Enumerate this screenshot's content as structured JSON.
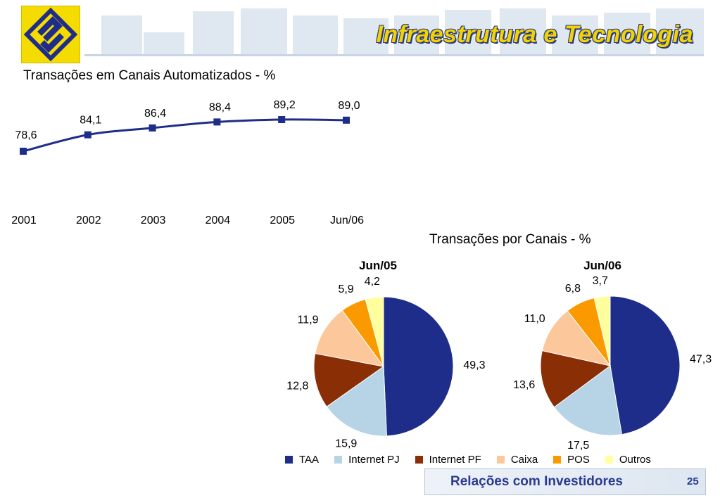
{
  "header": {
    "title": "Infraestrutura e Tecnologia"
  },
  "colors": {
    "brand_yellow": "#f5dc00",
    "brand_blue": "#2b3990",
    "line_series": "#1f2d8a",
    "header_bars": "#dfe7f1"
  },
  "footer": {
    "label": "Relações com Investidores",
    "page_number": "25"
  },
  "chart_data": [
    {
      "type": "line",
      "title": "Transações em Canais Automatizados - %",
      "categories": [
        "2001",
        "2002",
        "2003",
        "2004",
        "2005",
        "Jun/06"
      ],
      "values": [
        78.6,
        84.1,
        86.4,
        88.4,
        89.2,
        89.0
      ],
      "value_labels": [
        "78,6",
        "84,1",
        "86,4",
        "88,4",
        "89,2",
        "89,0"
      ],
      "grid": false
    },
    {
      "type": "pie",
      "title": "Transações por Canais - %",
      "charts": [
        {
          "label": "Jun/05",
          "slices": [
            {
              "name": "TAA",
              "value": 49.3,
              "label": "49,3"
            },
            {
              "name": "Internet PJ",
              "value": 15.9,
              "label": "15,9"
            },
            {
              "name": "Internet PF",
              "value": 12.8,
              "label": "12,8"
            },
            {
              "name": "Caixa",
              "value": 11.9,
              "label": "11,9"
            },
            {
              "name": "POS",
              "value": 5.9,
              "label": "5,9"
            },
            {
              "name": "Outros",
              "value": 4.2,
              "label": "4,2"
            }
          ]
        },
        {
          "label": "Jun/06",
          "slices": [
            {
              "name": "TAA",
              "value": 47.3,
              "label": "47,3"
            },
            {
              "name": "Internet PJ",
              "value": 17.5,
              "label": "17,5"
            },
            {
              "name": "Internet PF",
              "value": 13.6,
              "label": "13,6"
            },
            {
              "name": "Caixa",
              "value": 11.0,
              "label": "11,0"
            },
            {
              "name": "POS",
              "value": 6.8,
              "label": "6,8"
            },
            {
              "name": "Outros",
              "value": 3.7,
              "label": "3,7"
            }
          ]
        }
      ],
      "legend": {
        "placement": "bottom",
        "items": [
          {
            "name": "TAA",
            "color": "#1f2d8a"
          },
          {
            "name": "Internet PJ",
            "color": "#b7d3e6"
          },
          {
            "name": "Internet PF",
            "color": "#8a2e06"
          },
          {
            "name": "Caixa",
            "color": "#fcc89b"
          },
          {
            "name": "POS",
            "color": "#fb9a00"
          },
          {
            "name": "Outros",
            "color": "#ffff9e"
          }
        ]
      }
    }
  ]
}
